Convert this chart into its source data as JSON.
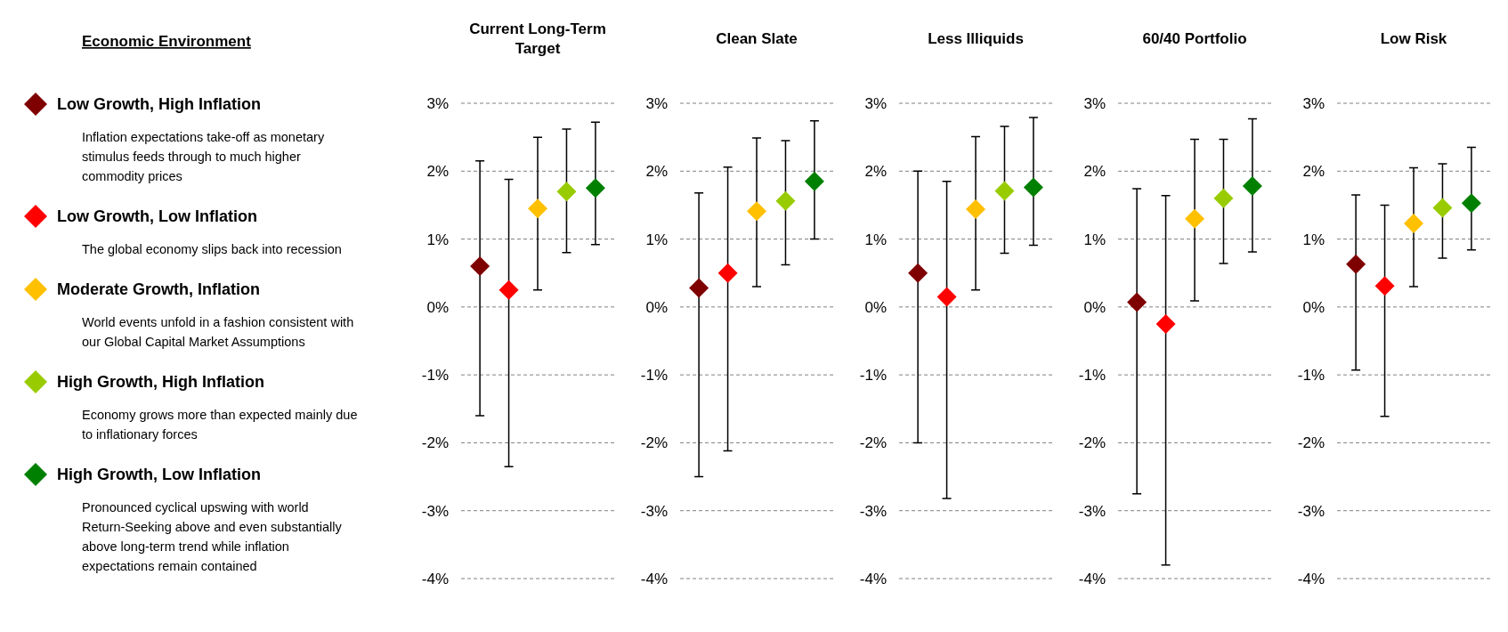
{
  "chart_data": [
    {
      "type": "scatter",
      "title": "Current Long-Term Target",
      "legend_title": "Economic Environment",
      "legend": "left",
      "marker": "diamond",
      "grid": "y",
      "tick_labels": "y",
      "categories": [
        null,
        null,
        null,
        null,
        null
      ],
      "ylim": [
        -4,
        3
      ],
      "yticks": [
        {
          "value": 3,
          "label": "3%"
        },
        {
          "value": 2,
          "label": "2%"
        },
        {
          "value": 1,
          "label": "1%"
        },
        {
          "value": 0,
          "label": "0%"
        },
        {
          "value": -1,
          "label": "-1%"
        },
        {
          "value": -2,
          "label": "-2%"
        },
        {
          "value": -3,
          "label": "-3%"
        },
        {
          "value": -4,
          "label": "-4%"
        }
      ],
      "series": [
        {
          "name": "Low Growth, High Inflation",
          "color": "#7f0000",
          "values": [
            0.6,
            null,
            null,
            null,
            null
          ],
          "errors": [
            [
              -1.6,
              2.15
            ],
            null,
            null,
            null,
            null
          ]
        },
        {
          "name": "Low Growth, Low Inflation",
          "color": "#ff0000",
          "values": [
            null,
            0.25,
            null,
            null,
            null
          ],
          "errors": [
            null,
            [
              -2.35,
              1.88
            ],
            null,
            null,
            null
          ]
        },
        {
          "name": "Moderate Growth, Inflation",
          "color": "#ffc000",
          "values": [
            null,
            null,
            1.45,
            null,
            null
          ],
          "errors": [
            null,
            null,
            [
              0.25,
              2.5
            ],
            null,
            null
          ]
        },
        {
          "name": "High Growth, High Inflation",
          "color": "#99cc00",
          "values": [
            null,
            null,
            null,
            1.7,
            null
          ],
          "errors": [
            null,
            null,
            null,
            [
              0.8,
              2.62
            ],
            null
          ]
        },
        {
          "name": "High Growth, Low Inflation",
          "color": "#008000",
          "values": [
            null,
            null,
            null,
            null,
            1.75
          ],
          "errors": [
            null,
            null,
            null,
            null,
            [
              0.92,
              2.72
            ]
          ]
        }
      ],
      "annotations": [
        "Inflation expectations take-off as monetary stimulus feeds through to much higher commodity prices",
        "The global economy slips back into recession",
        "World events unfold in a fashion consistent with our Global Capital Market Assumptions",
        "Economy grows more than expected mainly due to inflationary forces",
        "Pronounced cyclical upswing with world Return-Seeking above and even substantially above long-term trend while inflation expectations remain contained"
      ]
    },
    {
      "type": "scatter",
      "title": "Clean Slate",
      "legend": false,
      "marker": "diamond",
      "grid": "y",
      "tick_labels": "y",
      "categories": [
        null,
        null,
        null,
        null,
        null
      ],
      "ylim": [
        -4,
        3
      ],
      "yticks": [
        {
          "value": 3,
          "label": "3%"
        },
        {
          "value": 2,
          "label": "2%"
        },
        {
          "value": 1,
          "label": "1%"
        },
        {
          "value": 0,
          "label": "0%"
        },
        {
          "value": -1,
          "label": "-1%"
        },
        {
          "value": -2,
          "label": "-2%"
        },
        {
          "value": -3,
          "label": "-3%"
        },
        {
          "value": -4,
          "label": "-4%"
        }
      ],
      "series": [
        {
          "color": "#7f0000",
          "values": [
            0.28,
            null,
            null,
            null,
            null
          ],
          "errors": [
            [
              -2.5,
              1.68
            ],
            null,
            null,
            null,
            null
          ]
        },
        {
          "color": "#ff0000",
          "values": [
            null,
            0.5,
            null,
            null,
            null
          ],
          "errors": [
            null,
            [
              -2.12,
              2.06
            ],
            null,
            null,
            null
          ]
        },
        {
          "color": "#ffc000",
          "values": [
            null,
            null,
            1.41,
            null,
            null
          ],
          "errors": [
            null,
            null,
            [
              0.3,
              2.49
            ],
            null,
            null
          ]
        },
        {
          "color": "#99cc00",
          "values": [
            null,
            null,
            null,
            1.56,
            null
          ],
          "errors": [
            null,
            null,
            null,
            [
              0.62,
              2.45
            ],
            null
          ]
        },
        {
          "color": "#008000",
          "values": [
            null,
            null,
            null,
            null,
            1.85
          ],
          "errors": [
            null,
            null,
            null,
            null,
            [
              1.0,
              2.74
            ]
          ]
        }
      ]
    },
    {
      "type": "scatter",
      "title": "Less Illiquids",
      "legend": false,
      "marker": "diamond",
      "grid": "y",
      "tick_labels": "y",
      "categories": [
        null,
        null,
        null,
        null,
        null
      ],
      "ylim": [
        -4,
        3
      ],
      "yticks": [
        {
          "value": 3,
          "label": "3%"
        },
        {
          "value": 2,
          "label": "2%"
        },
        {
          "value": 1,
          "label": "1%"
        },
        {
          "value": 0,
          "label": "0%"
        },
        {
          "value": -1,
          "label": "-1%"
        },
        {
          "value": -2,
          "label": "-2%"
        },
        {
          "value": -3,
          "label": "-3%"
        },
        {
          "value": -4,
          "label": "-4%"
        }
      ],
      "series": [
        {
          "color": "#7f0000",
          "values": [
            0.5,
            null,
            null,
            null,
            null
          ],
          "errors": [
            [
              -2.0,
              2.0
            ],
            null,
            null,
            null,
            null
          ]
        },
        {
          "color": "#ff0000",
          "values": [
            null,
            0.15,
            null,
            null,
            null
          ],
          "errors": [
            null,
            [
              -2.82,
              1.85
            ],
            null,
            null,
            null
          ]
        },
        {
          "color": "#ffc000",
          "values": [
            null,
            null,
            1.44,
            null,
            null
          ],
          "errors": [
            null,
            null,
            [
              0.25,
              2.51
            ],
            null,
            null
          ]
        },
        {
          "color": "#99cc00",
          "values": [
            null,
            null,
            null,
            1.71,
            null
          ],
          "errors": [
            null,
            null,
            null,
            [
              0.79,
              2.66
            ],
            null
          ]
        },
        {
          "color": "#008000",
          "values": [
            null,
            null,
            null,
            null,
            1.76
          ],
          "errors": [
            null,
            null,
            null,
            null,
            [
              0.91,
              2.79
            ]
          ]
        }
      ]
    },
    {
      "type": "scatter",
      "title": "60/40 Portfolio",
      "legend": false,
      "marker": "diamond",
      "grid": "y",
      "tick_labels": "y",
      "categories": [
        null,
        null,
        null,
        null,
        null
      ],
      "ylim": [
        -4,
        3
      ],
      "yticks": [
        {
          "value": 3,
          "label": "3%"
        },
        {
          "value": 2,
          "label": "2%"
        },
        {
          "value": 1,
          "label": "1%"
        },
        {
          "value": 0,
          "label": "0%"
        },
        {
          "value": -1,
          "label": "-1%"
        },
        {
          "value": -2,
          "label": "-2%"
        },
        {
          "value": -3,
          "label": "-3%"
        },
        {
          "value": -4,
          "label": "-4%"
        }
      ],
      "series": [
        {
          "color": "#7f0000",
          "values": [
            0.07,
            null,
            null,
            null,
            null
          ],
          "errors": [
            [
              -2.75,
              1.74
            ],
            null,
            null,
            null,
            null
          ]
        },
        {
          "color": "#ff0000",
          "values": [
            null,
            -0.25,
            null,
            null,
            null
          ],
          "errors": [
            null,
            [
              -3.8,
              1.64
            ],
            null,
            null,
            null
          ]
        },
        {
          "color": "#ffc000",
          "values": [
            null,
            null,
            1.3,
            null,
            null
          ],
          "errors": [
            null,
            null,
            [
              0.09,
              2.47
            ],
            null,
            null
          ]
        },
        {
          "color": "#99cc00",
          "values": [
            null,
            null,
            null,
            1.6,
            null
          ],
          "errors": [
            null,
            null,
            null,
            [
              0.64,
              2.47
            ],
            null
          ]
        },
        {
          "color": "#008000",
          "values": [
            null,
            null,
            null,
            null,
            1.78
          ],
          "errors": [
            null,
            null,
            null,
            null,
            [
              0.81,
              2.77
            ]
          ]
        }
      ]
    },
    {
      "type": "scatter",
      "title": "Low Risk",
      "legend": false,
      "marker": "diamond",
      "grid": "y",
      "tick_labels": "y",
      "categories": [
        null,
        null,
        null,
        null,
        null
      ],
      "ylim": [
        -4,
        3
      ],
      "yticks": [
        {
          "value": 3,
          "label": "3%"
        },
        {
          "value": 2,
          "label": "2%"
        },
        {
          "value": 1,
          "label": "1%"
        },
        {
          "value": 0,
          "label": "0%"
        },
        {
          "value": -1,
          "label": "-1%"
        },
        {
          "value": -2,
          "label": "-2%"
        },
        {
          "value": -3,
          "label": "-3%"
        },
        {
          "value": -4,
          "label": "-4%"
        }
      ],
      "series": [
        {
          "color": "#7f0000",
          "values": [
            0.63,
            null,
            null,
            null,
            null
          ],
          "errors": [
            [
              -0.93,
              1.65
            ],
            null,
            null,
            null,
            null
          ]
        },
        {
          "color": "#ff0000",
          "values": [
            null,
            0.31,
            null,
            null,
            null
          ],
          "errors": [
            null,
            [
              -1.61,
              1.5
            ],
            null,
            null,
            null
          ]
        },
        {
          "color": "#ffc000",
          "values": [
            null,
            null,
            1.23,
            null,
            null
          ],
          "errors": [
            null,
            null,
            [
              0.3,
              2.05
            ],
            null,
            null
          ]
        },
        {
          "color": "#99cc00",
          "values": [
            null,
            null,
            null,
            1.46,
            null
          ],
          "errors": [
            null,
            null,
            null,
            [
              0.72,
              2.11
            ],
            null
          ]
        },
        {
          "color": "#008000",
          "values": [
            null,
            null,
            null,
            null,
            1.53
          ],
          "errors": [
            null,
            null,
            null,
            null,
            [
              0.84,
              2.35
            ]
          ]
        }
      ]
    }
  ]
}
